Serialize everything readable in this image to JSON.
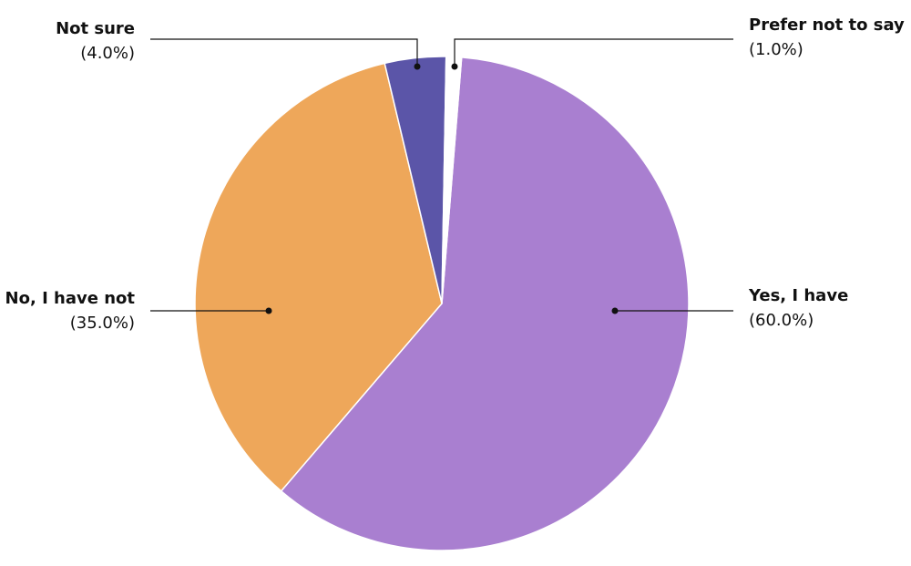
{
  "chart_data": {
    "type": "pie",
    "categories": [
      "Yes, I have",
      "No, I have not",
      "Not sure",
      "Prefer not to say"
    ],
    "values": [
      60,
      35,
      4,
      1
    ],
    "value_labels": [
      "(60.0%)",
      "(35.0%)",
      "(4.0%)",
      "(1.0%)"
    ],
    "colors": [
      "#a97fd0",
      "#eea75a",
      "#5b55a8",
      "#ffffff"
    ]
  }
}
